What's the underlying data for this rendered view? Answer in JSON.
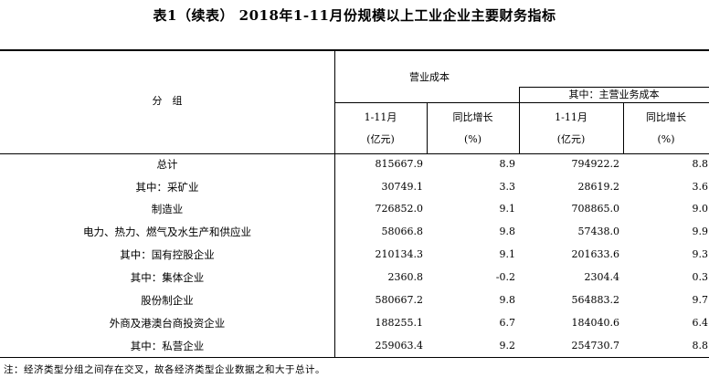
{
  "title": "表1（续表） 2018年1-11月份规模以上工业企业主要财务指标",
  "header": {
    "group_label": "分　组",
    "main_header": "营业成本",
    "sub_header": "其中：主营业务成本",
    "col_period": "1-11月",
    "col_unit_amount": "(亿元)",
    "col_growth": "同比增长",
    "col_unit_pct": "(%)"
  },
  "rows": [
    {
      "label": "总计",
      "v1": "815667.9",
      "v2": "8.9",
      "v3": "794922.2",
      "v4": "8.8"
    },
    {
      "label": "其中：采矿业",
      "v1": "30749.1",
      "v2": "3.3",
      "v3": "28619.2",
      "v4": "3.6"
    },
    {
      "label": "制造业",
      "v1": "726852.0",
      "v2": "9.1",
      "v3": "708865.0",
      "v4": "9.0"
    },
    {
      "label": "电力、热力、燃气及水生产和供应业",
      "v1": "58066.8",
      "v2": "9.8",
      "v3": "57438.0",
      "v4": "9.9"
    },
    {
      "label": "其中：国有控股企业",
      "v1": "210134.3",
      "v2": "9.1",
      "v3": "201633.6",
      "v4": "9.3"
    },
    {
      "label": "其中：集体企业",
      "v1": "2360.8",
      "v2": "-0.2",
      "v3": "2304.4",
      "v4": "0.3"
    },
    {
      "label": "股份制企业",
      "v1": "580667.2",
      "v2": "9.8",
      "v3": "564883.2",
      "v4": "9.7"
    },
    {
      "label": "外商及港澳台商投资企业",
      "v1": "188255.1",
      "v2": "6.7",
      "v3": "184040.6",
      "v4": "6.4"
    },
    {
      "label": "其中：私营企业",
      "v1": "259063.4",
      "v2": "9.2",
      "v3": "254730.7",
      "v4": "8.8"
    }
  ],
  "note": "注：经济类型分组之间存在交叉，故各经济类型企业数据之和大于总计。"
}
